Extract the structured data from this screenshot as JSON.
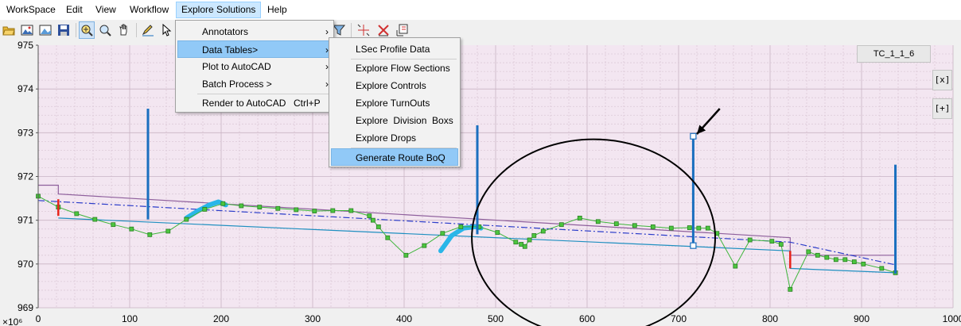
{
  "menubar": {
    "items": [
      "WorkSpace",
      "Edit",
      "View",
      "Workflow",
      "Explore Solutions",
      "Help"
    ],
    "active_index": 4
  },
  "toolbar": {
    "icons": [
      "open-folder-icon",
      "image-icon",
      "picture-icon",
      "save-icon",
      "zoom-extent-icon",
      "zoom-in-icon",
      "pan-hand-icon",
      "edit-icon",
      "select-cursor-icon",
      "filter-icon",
      "crosshair-icon",
      "delete-point-icon",
      "export-icon"
    ],
    "pressed": [
      "zoom-extent-icon"
    ]
  },
  "explore_menu": {
    "items": [
      {
        "label": "Annotators",
        "has_submenu": true
      },
      {
        "label": "Data Tables>",
        "has_submenu": true,
        "highlighted": true
      },
      {
        "label": "Plot to AutoCAD",
        "has_submenu": true
      },
      {
        "label": "Batch Process >",
        "has_submenu": true
      },
      {
        "label": "Render to AutoCAD",
        "shortcut": "Ctrl+P",
        "separator_before": true
      }
    ]
  },
  "data_tables_menu": {
    "items": [
      {
        "label": "LSec Profile Data"
      },
      {
        "label": "Explore Flow Sections",
        "separator_before": true
      },
      {
        "label": "Explore Controls"
      },
      {
        "label": "Explore TurnOuts"
      },
      {
        "label": "Explore  Division  Boxs"
      },
      {
        "label": "Explore Drops"
      },
      {
        "label": "Generate Route BoQ",
        "highlighted": true,
        "separator_before": true
      }
    ]
  },
  "plot_panel": {
    "tag_label": "TC_1_1_6",
    "close_button": "[x]",
    "add_button": "[+]"
  },
  "chart_data": {
    "type": "line",
    "y_exponent_label": "×10⁶",
    "xlim": [
      0,
      1000
    ],
    "ylim": [
      969,
      975
    ],
    "x_ticks": [
      "0",
      "100",
      "200",
      "300",
      "400",
      "500",
      "600",
      "700",
      "800",
      "900",
      "1000"
    ],
    "y_ticks": [
      "969",
      "970",
      "971",
      "972",
      "973",
      "974",
      "975"
    ],
    "background": "#f3e6f1",
    "grid": true,
    "colors": {
      "ground": "#3db53a",
      "upper_line": "#8e5f9c",
      "lower_line": "#1f8fc0",
      "dashdot": "#2b3cc9",
      "structures": "#1a6fbf",
      "highlight": "#29b6e8",
      "drops": "#e8231a",
      "annotation": "#000000"
    },
    "series": [
      {
        "style": "ground-profile",
        "x": [
          0,
          22,
          42,
          62,
          82,
          102,
          122,
          142,
          162,
          182,
          202,
          222,
          242,
          262,
          282,
          302,
          322,
          342,
          362,
          366,
          372,
          382,
          402,
          422,
          442,
          462,
          482,
          502,
          522,
          528,
          532,
          537,
          542,
          552,
          572,
          592,
          612,
          632,
          652,
          672,
          692,
          712,
          722,
          732,
          742,
          762,
          778,
          802,
          812,
          822,
          842,
          852,
          862,
          872,
          882,
          892,
          902,
          922,
          937
        ],
        "y": [
          971.55,
          971.3,
          971.15,
          971.02,
          970.9,
          970.8,
          970.67,
          970.75,
          971.02,
          971.25,
          971.38,
          971.33,
          971.3,
          971.27,
          971.24,
          971.21,
          971.22,
          971.22,
          971.1,
          971.0,
          970.85,
          970.6,
          970.2,
          970.42,
          970.7,
          970.85,
          970.85,
          970.72,
          970.5,
          970.45,
          970.4,
          970.55,
          970.65,
          970.75,
          970.9,
          971.05,
          970.97,
          970.92,
          970.88,
          970.85,
          970.82,
          970.83,
          970.82,
          970.82,
          970.7,
          969.95,
          970.55,
          970.52,
          970.45,
          969.42,
          970.28,
          970.2,
          970.15,
          970.1,
          970.1,
          970.05,
          970.0,
          969.9,
          969.8
        ]
      },
      {
        "style": "upper-bank",
        "x": [
          0,
          22,
          22,
          822,
          822,
          937
        ],
        "y": [
          971.8,
          971.8,
          971.6,
          970.6,
          970.2,
          970.2
        ]
      },
      {
        "style": "lower-bed",
        "x": [
          22,
          822,
          822,
          937
        ],
        "y": [
          971.05,
          970.3,
          969.9,
          969.8
        ]
      },
      {
        "style": "dashdot-line",
        "x": [
          0,
          822,
          937
        ],
        "y": [
          971.45,
          970.5,
          969.98
        ]
      }
    ],
    "structures": [
      {
        "x": 120,
        "y_top": 973.55,
        "y_bottom": 971.02
      },
      {
        "x": 480,
        "y_top": 973.17,
        "y_bottom": 970.68
      },
      {
        "x": 716,
        "y_top": 972.92,
        "y_bottom": 970.42,
        "selected": true
      },
      {
        "x": 937,
        "y_top": 972.27,
        "y_bottom": 969.78
      }
    ],
    "drops": [
      {
        "x": 22,
        "y_top": 971.48,
        "y_bottom": 971.1
      },
      {
        "x": 822,
        "y_top": 970.3,
        "y_bottom": 969.9
      }
    ],
    "highlights": [
      {
        "x": [
          162,
          175,
          187,
          197,
          205
        ],
        "y": [
          971.05,
          971.22,
          971.35,
          971.42,
          971.35
        ]
      },
      {
        "x": [
          440,
          452,
          465,
          478,
          484
        ],
        "y": [
          970.3,
          970.65,
          970.82,
          970.85,
          970.82
        ]
      }
    ],
    "annotations": {
      "ellipse": {
        "cx": 607,
        "cy": 970.6,
        "rx": 133,
        "ry": 2.25
      },
      "arrow": {
        "from_x": 745,
        "from_y": 973.55,
        "to_x": 720,
        "to_y": 972.97
      }
    }
  }
}
